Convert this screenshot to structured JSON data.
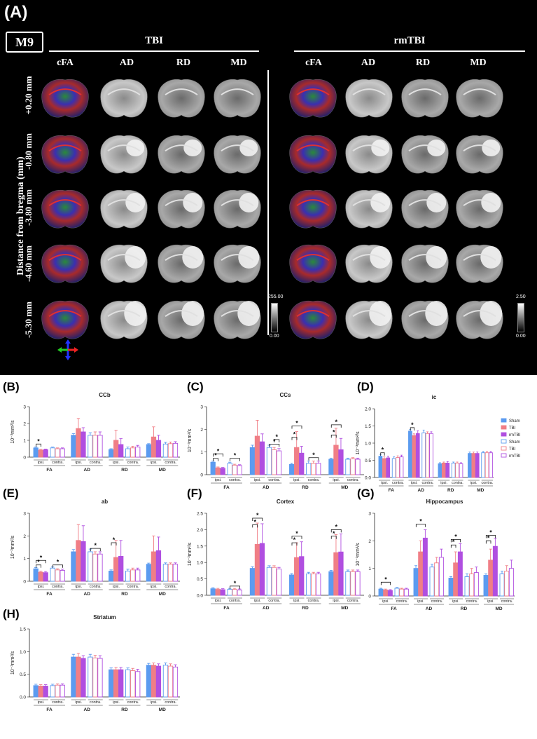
{
  "panel_a": {
    "label": "(A)",
    "subject_tag": "M9",
    "groups": [
      "TBI",
      "rmTBI"
    ],
    "columns": [
      "cFA",
      "AD",
      "RD",
      "MD"
    ],
    "row_axis_label": "Distance from bregma (mm)",
    "slices": [
      "+0.20 mm",
      "-0.80 mm",
      "-3.80 mm",
      "-4.60 mm",
      "-5.30 mm"
    ],
    "scalebars": [
      {
        "top": "255.00",
        "bottom": "0.00"
      },
      {
        "top": "2.50",
        "bottom": "0.00"
      }
    ]
  },
  "legend": {
    "items": [
      {
        "name": "Sham",
        "color": "#5b9bf0",
        "fill": true
      },
      {
        "name": "TBI",
        "color": "#f07e86",
        "fill": true
      },
      {
        "name": "rmTBI",
        "color": "#b04fe0",
        "fill": true
      },
      {
        "name": "Sham",
        "color": "#5b9bf0",
        "fill": false
      },
      {
        "name": "TBI",
        "color": "#f07e86",
        "fill": false
      },
      {
        "name": "rmTBI",
        "color": "#b04fe0",
        "fill": false
      }
    ]
  },
  "chart_data": [
    {
      "panel": "(B)",
      "type": "bar",
      "title": "CCb",
      "ylabel": "10⁻³mm²/s",
      "ylim": [
        0,
        3
      ],
      "yticks": [
        "0",
        "1",
        "2",
        "3"
      ],
      "categories": [
        "FA",
        "AD",
        "RD",
        "MD"
      ],
      "sub_labels": [
        "ipsi.",
        "contra."
      ],
      "groups": [
        [
          0.55,
          0.42,
          0.44,
          0.55,
          0.5,
          0.5
        ],
        [
          1.3,
          1.7,
          1.5,
          1.3,
          1.3,
          1.3
        ],
        [
          0.45,
          1.0,
          0.75,
          0.5,
          0.55,
          0.6
        ],
        [
          0.75,
          1.2,
          1.0,
          0.78,
          0.8,
          0.82
        ]
      ],
      "errors": [
        [
          0.05,
          0.05,
          0.04,
          0.05,
          0.05,
          0.05
        ],
        [
          0.1,
          0.6,
          0.25,
          0.15,
          0.2,
          0.2
        ],
        [
          0.05,
          0.6,
          0.35,
          0.1,
          0.1,
          0.1
        ],
        [
          0.05,
          0.6,
          0.3,
          0.1,
          0.1,
          0.1
        ]
      ],
      "sig": [
        {
          "g": 0,
          "a": 0,
          "b": 1,
          "level": 0.78
        }
      ]
    },
    {
      "panel": "(C)",
      "type": "bar",
      "title": "CCs",
      "ylabel": "10⁻³mm²/s",
      "ylim": [
        0,
        3
      ],
      "yticks": [
        "0",
        "1",
        "2",
        "3"
      ],
      "categories": [
        "FA",
        "AD",
        "RD",
        "MD"
      ],
      "sub_labels": [
        "ipsi.",
        "contra."
      ],
      "groups": [
        [
          0.55,
          0.3,
          0.28,
          0.5,
          0.42,
          0.4
        ],
        [
          1.2,
          1.7,
          1.45,
          1.2,
          1.1,
          1.05
        ],
        [
          0.45,
          1.2,
          0.95,
          0.5,
          0.5,
          0.5
        ],
        [
          0.68,
          1.3,
          1.1,
          0.68,
          0.7,
          0.68
        ]
      ],
      "errors": [
        [
          0.05,
          0.04,
          0.04,
          0.05,
          0.04,
          0.04
        ],
        [
          0.1,
          0.7,
          0.35,
          0.1,
          0.1,
          0.1
        ],
        [
          0.05,
          0.7,
          0.3,
          0.1,
          0.1,
          0.1
        ],
        [
          0.05,
          0.75,
          0.5,
          0.05,
          0.05,
          0.05
        ]
      ],
      "sig": [
        {
          "g": 0,
          "a": 0,
          "b": 1,
          "level": 0.72
        },
        {
          "g": 0,
          "a": 0,
          "b": 2,
          "level": 0.92
        },
        {
          "g": 0,
          "a": 3,
          "b": 5,
          "level": 0.72
        },
        {
          "g": 1,
          "a": 3,
          "b": 5,
          "level": 1.35
        },
        {
          "g": 1,
          "a": 4,
          "b": 5,
          "level": 1.55
        },
        {
          "g": 2,
          "a": 0,
          "b": 1,
          "level": 1.65
        },
        {
          "g": 2,
          "a": 0,
          "b": 2,
          "level": 2.15
        },
        {
          "g": 2,
          "a": 3,
          "b": 5,
          "level": 0.75
        },
        {
          "g": 3,
          "a": 0,
          "b": 1,
          "level": 1.75
        },
        {
          "g": 3,
          "a": 0,
          "b": 2,
          "level": 2.2
        }
      ]
    },
    {
      "panel": "(D)",
      "type": "bar",
      "title": "ic",
      "ylabel": "10⁻³mm²/s",
      "ylim": [
        0,
        2
      ],
      "yticks": [
        "0.0",
        "0.5",
        "1.0",
        "1.5",
        "2.0"
      ],
      "categories": [
        "FA",
        "AD",
        "RD",
        "MD"
      ],
      "sub_labels": [
        "ipsi.",
        "contra."
      ],
      "groups": [
        [
          0.62,
          0.55,
          0.57,
          0.55,
          0.58,
          0.6
        ],
        [
          1.35,
          1.22,
          1.28,
          1.3,
          1.28,
          1.28
        ],
        [
          0.4,
          0.42,
          0.42,
          0.42,
          0.42,
          0.4
        ],
        [
          0.7,
          0.7,
          0.7,
          0.72,
          0.72,
          0.72
        ]
      ],
      "errors": [
        [
          0.05,
          0.05,
          0.05,
          0.05,
          0.05,
          0.05
        ],
        [
          0.05,
          0.05,
          0.08,
          0.08,
          0.05,
          0.05
        ],
        [
          0.03,
          0.03,
          0.04,
          0.03,
          0.03,
          0.03
        ],
        [
          0.04,
          0.04,
          0.04,
          0.04,
          0.04,
          0.04
        ]
      ],
      "sig": [
        {
          "g": 0,
          "a": 0,
          "b": 1,
          "level": 0.72
        },
        {
          "g": 1,
          "a": 0,
          "b": 1,
          "level": 1.45
        }
      ]
    },
    {
      "panel": "(E)",
      "type": "bar",
      "title": "ab",
      "ylabel": "10⁻³mm²/s",
      "ylim": [
        0,
        3
      ],
      "yticks": [
        "0",
        "1",
        "2",
        "3"
      ],
      "categories": [
        "FA",
        "AD",
        "RD",
        "MD"
      ],
      "sub_labels": [
        "ipsi.",
        "contra."
      ],
      "groups": [
        [
          0.55,
          0.4,
          0.38,
          0.58,
          0.5,
          0.48
        ],
        [
          1.3,
          1.8,
          1.75,
          1.3,
          1.2,
          1.2
        ],
        [
          0.45,
          1.05,
          1.1,
          0.45,
          0.5,
          0.5
        ],
        [
          0.75,
          1.3,
          1.35,
          0.75,
          0.75,
          0.75
        ]
      ],
      "errors": [
        [
          0.05,
          0.05,
          0.05,
          0.05,
          0.05,
          0.05
        ],
        [
          0.1,
          0.7,
          0.7,
          0.12,
          0.1,
          0.1
        ],
        [
          0.05,
          0.75,
          0.7,
          0.08,
          0.08,
          0.08
        ],
        [
          0.05,
          0.7,
          0.6,
          0.06,
          0.06,
          0.06
        ]
      ],
      "sig": [
        {
          "g": 0,
          "a": 0,
          "b": 1,
          "level": 0.72
        },
        {
          "g": 0,
          "a": 0,
          "b": 2,
          "level": 0.92
        },
        {
          "g": 0,
          "a": 3,
          "b": 5,
          "level": 0.72
        },
        {
          "g": 1,
          "a": 3,
          "b": 5,
          "level": 1.45
        },
        {
          "g": 2,
          "a": 0,
          "b": 1,
          "level": 1.7
        }
      ]
    },
    {
      "panel": "(F)",
      "type": "bar",
      "title": "Cortex",
      "ylabel": "10⁻³mm²/s",
      "ylim": [
        0,
        2.5
      ],
      "yticks": [
        "0.0",
        "0.5",
        "1.0",
        "1.5",
        "2.0",
        "2.5"
      ],
      "categories": [
        "FA",
        "AD",
        "RD",
        "MD"
      ],
      "sub_labels": [
        "ipsi.",
        "contra."
      ],
      "groups": [
        [
          0.2,
          0.18,
          0.17,
          0.18,
          0.18,
          0.16
        ],
        [
          0.82,
          1.55,
          1.58,
          0.85,
          0.85,
          0.8
        ],
        [
          0.62,
          1.15,
          1.18,
          0.65,
          0.65,
          0.65
        ],
        [
          0.72,
          1.3,
          1.32,
          0.72,
          0.72,
          0.72
        ]
      ],
      "errors": [
        [
          0.03,
          0.03,
          0.03,
          0.03,
          0.03,
          0.03
        ],
        [
          0.05,
          0.65,
          0.6,
          0.05,
          0.05,
          0.05
        ],
        [
          0.04,
          0.45,
          0.45,
          0.05,
          0.05,
          0.05
        ],
        [
          0.04,
          0.55,
          0.55,
          0.05,
          0.05,
          0.05
        ]
      ],
      "sig": [
        {
          "g": 0,
          "a": 3,
          "b": 5,
          "level": 0.28
        },
        {
          "g": 1,
          "a": 0,
          "b": 1,
          "level": 2.15
        },
        {
          "g": 1,
          "a": 0,
          "b": 2,
          "level": 2.35
        },
        {
          "g": 2,
          "a": 0,
          "b": 1,
          "level": 1.6
        },
        {
          "g": 2,
          "a": 0,
          "b": 2,
          "level": 1.8
        },
        {
          "g": 3,
          "a": 0,
          "b": 1,
          "level": 1.8
        },
        {
          "g": 3,
          "a": 0,
          "b": 2,
          "level": 2.0
        }
      ]
    },
    {
      "panel": "(G)",
      "type": "bar",
      "title": "Hippocampus",
      "ylabel": "10⁻³mm²/s",
      "ylim": [
        0,
        3
      ],
      "yticks": [
        "0",
        "1",
        "2",
        "3"
      ],
      "categories": [
        "FA",
        "AD",
        "RD",
        "MD"
      ],
      "sub_labels": [
        "ipsi.",
        "contra."
      ],
      "groups": [
        [
          0.25,
          0.22,
          0.2,
          0.28,
          0.25,
          0.25
        ],
        [
          1.0,
          1.6,
          2.1,
          1.05,
          1.2,
          1.4
        ],
        [
          0.65,
          1.2,
          1.6,
          0.7,
          0.8,
          0.85
        ],
        [
          0.75,
          1.3,
          1.8,
          0.8,
          0.9,
          1.0
        ]
      ],
      "errors": [
        [
          0.03,
          0.03,
          0.03,
          0.03,
          0.03,
          0.03
        ],
        [
          0.1,
          0.4,
          0.3,
          0.1,
          0.2,
          0.3
        ],
        [
          0.05,
          0.4,
          0.3,
          0.1,
          0.2,
          0.2
        ],
        [
          0.05,
          0.4,
          0.3,
          0.1,
          0.2,
          0.3
        ]
      ],
      "sig": [
        {
          "g": 0,
          "a": 0,
          "b": 2,
          "level": 0.5
        },
        {
          "g": 1,
          "a": 0,
          "b": 2,
          "level": 2.6
        },
        {
          "g": 2,
          "a": 0,
          "b": 1,
          "level": 1.85
        },
        {
          "g": 2,
          "a": 0,
          "b": 2,
          "level": 2.05
        },
        {
          "g": 3,
          "a": 0,
          "b": 1,
          "level": 2.0
        },
        {
          "g": 3,
          "a": 0,
          "b": 2,
          "level": 2.2
        }
      ]
    },
    {
      "panel": "(H)",
      "type": "bar",
      "title": "Striatum",
      "ylabel": "10⁻³mm²/s",
      "ylim": [
        0,
        1.5
      ],
      "yticks": [
        "0.0",
        "0.5",
        "1.0",
        "1.5"
      ],
      "categories": [
        "FA",
        "AD",
        "RD",
        "MD"
      ],
      "sub_labels": [
        "ipsi.",
        "contra."
      ],
      "groups": [
        [
          0.25,
          0.24,
          0.24,
          0.25,
          0.26,
          0.26
        ],
        [
          0.88,
          0.88,
          0.85,
          0.88,
          0.86,
          0.85
        ],
        [
          0.6,
          0.6,
          0.6,
          0.6,
          0.58,
          0.56
        ],
        [
          0.7,
          0.7,
          0.68,
          0.7,
          0.68,
          0.66
        ]
      ],
      "errors": [
        [
          0.03,
          0.03,
          0.03,
          0.03,
          0.03,
          0.03
        ],
        [
          0.06,
          0.08,
          0.06,
          0.06,
          0.06,
          0.06
        ],
        [
          0.04,
          0.05,
          0.05,
          0.04,
          0.05,
          0.05
        ],
        [
          0.04,
          0.05,
          0.05,
          0.05,
          0.05,
          0.05
        ]
      ],
      "sig": []
    }
  ]
}
